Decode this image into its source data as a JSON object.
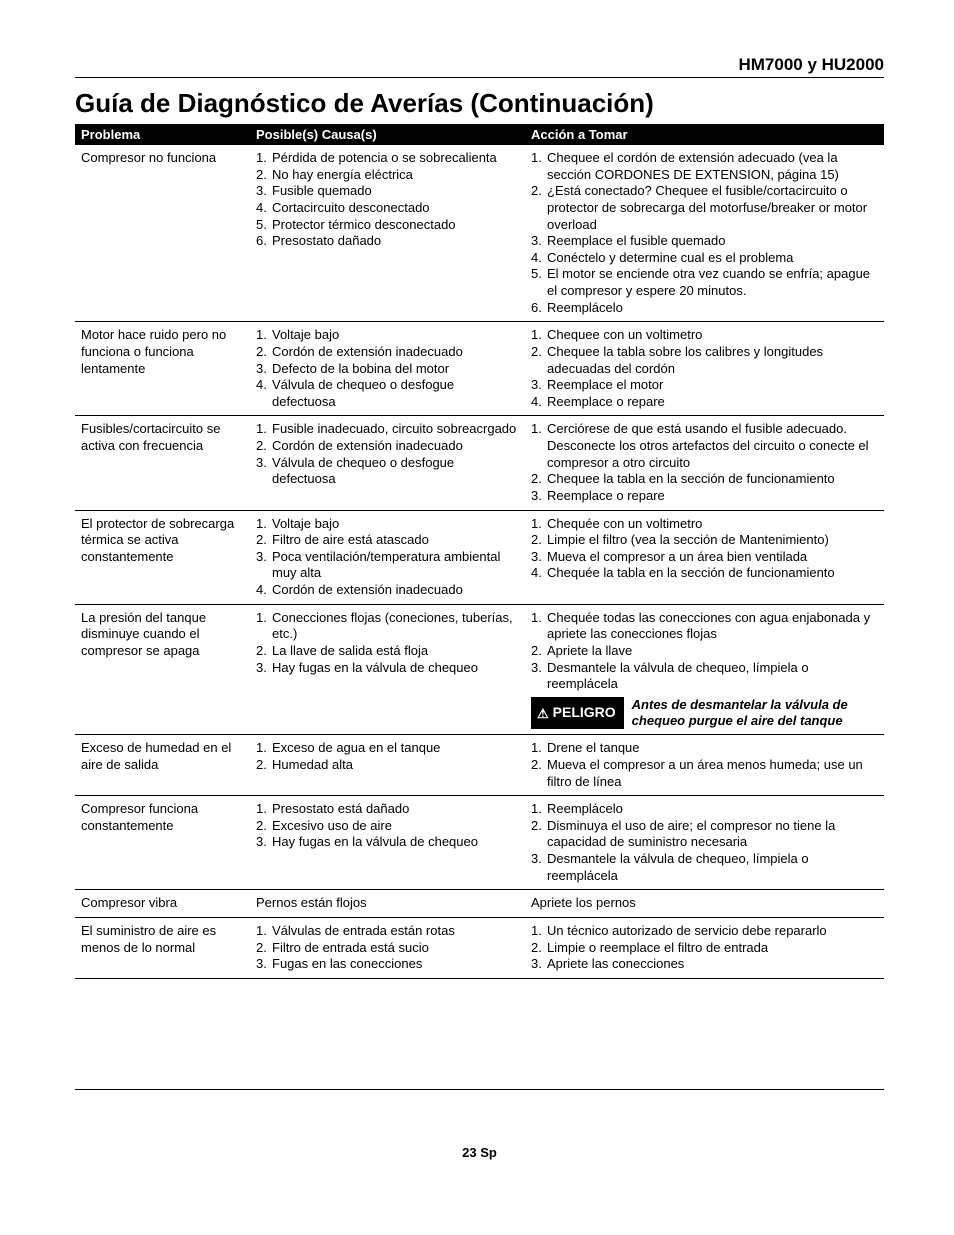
{
  "header_model": "HM7000 y HU2000",
  "title": "Guía de Diagnóstico de Averías (Continuación)",
  "columns": [
    "Problema",
    "Posible(s) Causa(s)",
    "Acción a Tomar"
  ],
  "danger_label": "PELIGRO",
  "danger_message": "Antes de desmantelar la válvula de chequeo purgue el aire del tanque",
  "rows": [
    {
      "problem": "Compresor no funciona",
      "causes": [
        "Pérdida de potencia o se sobrecalienta",
        "No hay energía eléctrica",
        "Fusible quemado",
        "Cortacircuito desconectado",
        "Protector térmico desconectado",
        "Presostato dañado"
      ],
      "actions": [
        "Chequee el cordón de extensión adecuado (vea la sección CORDONES DE EXTENSION, página 15)",
        "¿Está conectado? Chequee el fusible/cortacircuito o protector de sobrecarga del motorfuse/breaker or motor overload",
        "Reemplace el fusible quemado",
        "Conéctelo y determine cual es el problema",
        "El motor se enciende otra vez cuando se enfría; apague el compresor y espere 20 minutos.",
        "Reemplácelo"
      ]
    },
    {
      "problem": "Motor hace ruido pero no funciona o funciona lentamente",
      "causes": [
        "Voltaje bajo",
        "Cordón de extensión inadecuado",
        "Defecto de la bobina del motor",
        "Válvula de chequeo o desfogue defectuosa"
      ],
      "actions": [
        "Chequee con un voltimetro",
        "Chequee la tabla sobre los calibres y longitudes adecuadas del cordón",
        "Reemplace el motor",
        "Reemplace o repare"
      ]
    },
    {
      "problem": "Fusibles/cortacircuito se activa con frecuencia",
      "causes": [
        "Fusible inadecuado, circuito sobreacrgado",
        "Cordón de extensión inadecuado",
        "Válvula de chequeo o desfogue defectuosa"
      ],
      "actions": [
        "Cerciórese de que está usando el fusible adecuado. Desconecte los otros artefactos del circuito o conecte el compresor a otro circuito",
        "Chequee la tabla en la sección de funcionamiento",
        "Reemplace o repare"
      ]
    },
    {
      "problem": "El protector de sobrecarga térmica se activa constantemente",
      "causes": [
        "Voltaje bajo",
        "Filtro de aire está atascado",
        "Poca ventilación/temperatura ambiental muy alta",
        "Cordón de extensión inadecuado"
      ],
      "actions": [
        "Chequée con un voltimetro",
        "Limpie el filtro (vea la sección de Mantenimiento)",
        "Mueva el compresor a un área bien ventilada",
        "Chequée la tabla en la sección de funcionamiento"
      ]
    },
    {
      "problem": "La presión del tanque disminuye cuando el compresor se apaga",
      "causes": [
        "Conecciones flojas (coneciones, tuberías, etc.)",
        "La llave de salida está floja",
        "Hay fugas en la válvula de chequeo"
      ],
      "actions": [
        "Chequée todas las conecciones con agua enjabonada y apriete las conecciones flojas",
        "Apriete la llave",
        "Desmantele la válvula de chequeo, límpiela o reemplácela"
      ],
      "has_danger": true
    },
    {
      "problem": "Exceso de humedad en el aire de salida",
      "causes": [
        "Exceso de agua en el tanque",
        "Humedad alta"
      ],
      "actions": [
        "Drene el tanque",
        "Mueva el compresor a un área menos humeda; use un filtro de línea"
      ]
    },
    {
      "problem": "Compresor funciona constantemente",
      "causes": [
        "Presostato está dañado",
        "Excesivo uso de aire",
        "Hay fugas en la válvula de chequeo"
      ],
      "actions": [
        "Reemplácelo",
        "Disminuya el uso de aire; el compresor no tiene la capacidad de suministro necesaria",
        "Desmantele la válvula de chequeo, límpiela o reemplácela"
      ]
    },
    {
      "problem": "Compresor vibra",
      "causes_plain": "Pernos están flojos",
      "actions_plain": "Apriete los pernos"
    },
    {
      "problem": "El suministro de aire es menos de lo  normal",
      "causes": [
        "Válvulas de entrada están rotas",
        "Filtro de entrada está sucio",
        "Fugas en las conecciones"
      ],
      "actions": [
        "Un técnico autorizado de servicio debe repararlo",
        "Limpie o reemplace el filtro de entrada",
        "Apriete las conecciones"
      ]
    }
  ],
  "page_number": "23 Sp"
}
